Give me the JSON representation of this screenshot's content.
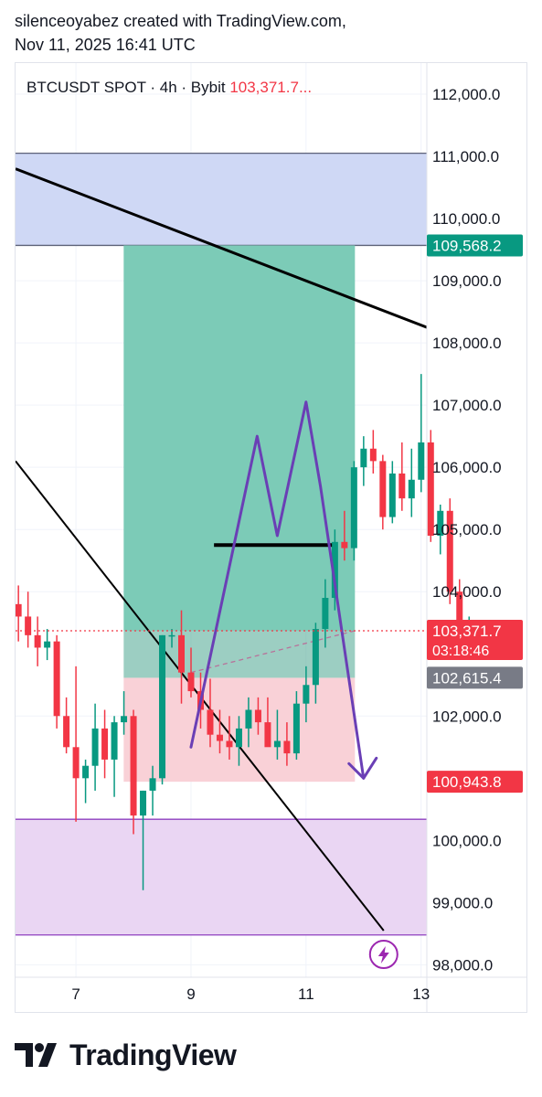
{
  "header": {
    "credit_line1": "silenceoyabez created with TradingView.com,",
    "credit_line2": "Nov 11, 2025 16:41 UTC"
  },
  "legend": {
    "symbol": "BTCUSDT SPOT · 4h · Bybit",
    "price": "103,371.7..."
  },
  "brand": {
    "name": "TradingView",
    "icon": "tradingview-logo-icon"
  },
  "icons": {
    "lightning": "lightning-icon"
  },
  "colors": {
    "up": "#089981",
    "down": "#f23645",
    "grid": "#f0f3fa",
    "blue_zone": "#cfd8f5",
    "target_zone": "#7ccbb7",
    "stop_zone": "#f9d1d7",
    "purple_zone": "#ead6f3",
    "pattern": "#6a3fb5",
    "tag_green": "#089981",
    "tag_red": "#f23645",
    "tag_gray": "#787b86"
  },
  "chart_data": {
    "type": "candlestick",
    "symbol": "BTCUSDT SPOT",
    "interval": "4h",
    "exchange": "Bybit",
    "ylim": [
      97800,
      112500
    ],
    "xlim": [
      5.95,
      13.1
    ],
    "y_ticks": [
      {
        "value": 112000,
        "label": "112,000.0"
      },
      {
        "value": 111000,
        "label": "111,000.0"
      },
      {
        "value": 110000,
        "label": "110,000.0"
      },
      {
        "value": 109000,
        "label": "109,000.0"
      },
      {
        "value": 108000,
        "label": "108,000.0"
      },
      {
        "value": 107000,
        "label": "107,000.0"
      },
      {
        "value": 106000,
        "label": "106,000.0"
      },
      {
        "value": 105000,
        "label": "105,000.0"
      },
      {
        "value": 104000,
        "label": "104,000.0"
      },
      {
        "value": 102000,
        "label": "102,000.0"
      },
      {
        "value": 100000,
        "label": "100,000.0"
      },
      {
        "value": 99000,
        "label": "99,000.0"
      },
      {
        "value": 98000,
        "label": "98,000.0"
      }
    ],
    "x_ticks": [
      {
        "value": 7,
        "label": "7"
      },
      {
        "value": 9,
        "label": "9"
      },
      {
        "value": 11,
        "label": "11"
      },
      {
        "value": 13,
        "label": "13"
      }
    ],
    "price_tags": [
      {
        "value": 109568.2,
        "label": "109,568.2",
        "color": "green"
      },
      {
        "value": 103371.7,
        "label": "103,371.7",
        "sub": "03:18:46",
        "color": "red"
      },
      {
        "value": 102615.4,
        "label": "102,615.4",
        "color": "gray"
      },
      {
        "value": 100943.8,
        "label": "100,943.8",
        "color": "red"
      }
    ],
    "candles": [
      [
        103800,
        104100,
        103200,
        103600
      ],
      [
        103600,
        104000,
        103100,
        103300
      ],
      [
        103300,
        103600,
        102800,
        103100
      ],
      [
        103100,
        103400,
        102900,
        103200
      ],
      [
        103200,
        103300,
        101800,
        102000
      ],
      [
        102000,
        102300,
        101400,
        101500
      ],
      [
        101500,
        102800,
        100300,
        101000
      ],
      [
        101000,
        101300,
        100600,
        101200
      ],
      [
        101200,
        102200,
        100800,
        101800
      ],
      [
        101800,
        102100,
        101000,
        101300
      ],
      [
        101300,
        102000,
        100700,
        101900
      ],
      [
        101900,
        102400,
        101700,
        102000
      ],
      [
        102000,
        102100,
        100100,
        100400
      ],
      [
        100400,
        100800,
        99200,
        100800
      ],
      [
        100800,
        101200,
        100400,
        101000
      ],
      [
        101000,
        103300,
        100900,
        103300
      ],
      [
        103300,
        103400,
        103100,
        103300
      ],
      [
        103300,
        103700,
        102200,
        102700
      ],
      [
        102700,
        103100,
        102300,
        102400
      ],
      [
        102400,
        102700,
        101800,
        102100
      ],
      [
        102100,
        102600,
        101500,
        101700
      ],
      [
        101700,
        102100,
        101400,
        101600
      ],
      [
        101600,
        102000,
        101300,
        101500
      ],
      [
        101500,
        102000,
        101200,
        101800
      ],
      [
        101800,
        102300,
        101500,
        102100
      ],
      [
        102100,
        102300,
        101700,
        101900
      ],
      [
        101900,
        102300,
        101600,
        101500
      ],
      [
        101500,
        102100,
        101300,
        101600
      ],
      [
        101600,
        101900,
        101200,
        101400
      ],
      [
        101400,
        102400,
        101300,
        102200
      ],
      [
        102200,
        102800,
        101900,
        102500
      ],
      [
        102500,
        103500,
        102200,
        103400
      ],
      [
        103400,
        104200,
        103100,
        103900
      ],
      [
        103900,
        105000,
        103700,
        104800
      ],
      [
        104800,
        105300,
        104500,
        104700
      ],
      [
        104700,
        106100,
        104500,
        106000
      ],
      [
        106000,
        106500,
        105700,
        106300
      ],
      [
        106300,
        106600,
        105900,
        106100
      ],
      [
        106100,
        106200,
        105000,
        105200
      ],
      [
        105200,
        106100,
        105100,
        105900
      ],
      [
        105900,
        106400,
        105300,
        105500
      ],
      [
        105500,
        106300,
        105200,
        105800
      ],
      [
        105800,
        107500,
        105600,
        106400
      ],
      [
        106400,
        106600,
        104800,
        104900
      ],
      [
        104900,
        105400,
        104600,
        105300
      ],
      [
        105300,
        105500,
        103800,
        104000
      ],
      [
        104000,
        104200,
        103100,
        103300
      ],
      [
        103300,
        103600,
        103100,
        103400
      ]
    ],
    "candle_x_start": 6.0,
    "candle_x_step": 0.1667,
    "zones": [
      {
        "name": "supply",
        "x1": 5.95,
        "x2": 13.1,
        "y1": 109568.2,
        "y2": 111050,
        "fill": "blue"
      },
      {
        "name": "target",
        "x1": 7.83,
        "x2": 11.85,
        "y1": 103371.7,
        "y2": 109568.2,
        "fill": "green"
      },
      {
        "name": "stop",
        "x1": 7.83,
        "x2": 11.85,
        "y1": 100943.8,
        "y2": 102615.4,
        "fill": "red"
      },
      {
        "name": "demand",
        "x1": 5.95,
        "x2": 13.1,
        "y1": 98480,
        "y2": 100340,
        "fill": "purple"
      }
    ],
    "trendlines": [
      {
        "name": "upper-trendline",
        "x1": 5.95,
        "y1": 110800,
        "x2": 13.1,
        "y2": 108250,
        "width": 3
      },
      {
        "name": "lower-trendline",
        "x1": 5.95,
        "y1": 106100,
        "x2": 12.35,
        "y2": 98550,
        "width": 2
      }
    ],
    "neckline": {
      "x1": 9.4,
      "x2": 11.45,
      "y": 104750
    },
    "pattern_path": [
      [
        9.0,
        101500
      ],
      [
        10.15,
        106500
      ],
      [
        10.5,
        104900
      ],
      [
        11.0,
        107050
      ],
      [
        11.25,
        105700
      ],
      [
        12.0,
        101000
      ]
    ],
    "entry_line": {
      "x1": 9.0,
      "y1": 102700,
      "x2": 11.85,
      "y2": 103371.7
    },
    "current_price": 103371.7
  }
}
